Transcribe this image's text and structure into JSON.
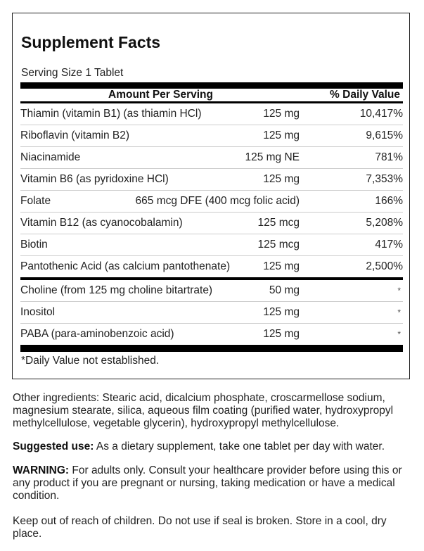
{
  "title": "Supplement Facts",
  "serving_size": "Serving Size 1 Tablet",
  "header": {
    "amount": "Amount Per Serving",
    "dv": "% Daily Value"
  },
  "rows": [
    {
      "name": "Thiamin (vitamin B1) (as thiamin HCl)",
      "amount": "125 mg",
      "dv": "10,417%"
    },
    {
      "name": "Riboflavin (vitamin B2)",
      "amount": "125 mg",
      "dv": "9,615%"
    },
    {
      "name": "Niacinamide",
      "amount": "125 mg NE",
      "dv": "781%"
    },
    {
      "name": "Vitamin B6 (as pyridoxine HCl)",
      "amount": "125 mg",
      "dv": "7,353%"
    },
    {
      "name": "Folate",
      "amount": "665 mcg DFE (400 mcg folic acid)",
      "dv": "166%"
    },
    {
      "name": "Vitamin B12 (as cyanocobalamin)",
      "amount": "125 mcg",
      "dv": "5,208%"
    },
    {
      "name": "Biotin",
      "amount": "125 mcg",
      "dv": "417%"
    },
    {
      "name": "Pantothenic Acid (as calcium pantothenate)",
      "amount": "125 mg",
      "dv": "2,500%"
    }
  ],
  "rows2": [
    {
      "name": "Choline (from 125 mg choline bitartrate)",
      "amount": "50 mg",
      "dv": "*"
    },
    {
      "name": "Inositol",
      "amount": "125 mg",
      "dv": "*"
    },
    {
      "name": "PABA (para-aminobenzoic acid)",
      "amount": "125 mg",
      "dv": "*"
    }
  ],
  "footnote": "*Daily Value not established.",
  "other_ingredients": "Other ingredients: Stearic acid, dicalcium phosphate, croscarmellose sodium, magnesium stearate, silica, aqueous film coating (purified water, hydroxypropyl methylcellulose, vegetable glycerin), hydroxypropyl methylcellulose.",
  "suggested_use": {
    "label": "Suggested use:",
    "text": " As a dietary supplement, take one tablet per day with water."
  },
  "warning": {
    "label": "WARNING:",
    "text": " For adults only. Consult your healthcare provider before using this or any product if you are pregnant or nursing, taking medication or have a medical condition."
  },
  "storage": "Keep out of reach of children. Do not use if seal is broken. Store in a cool, dry place."
}
